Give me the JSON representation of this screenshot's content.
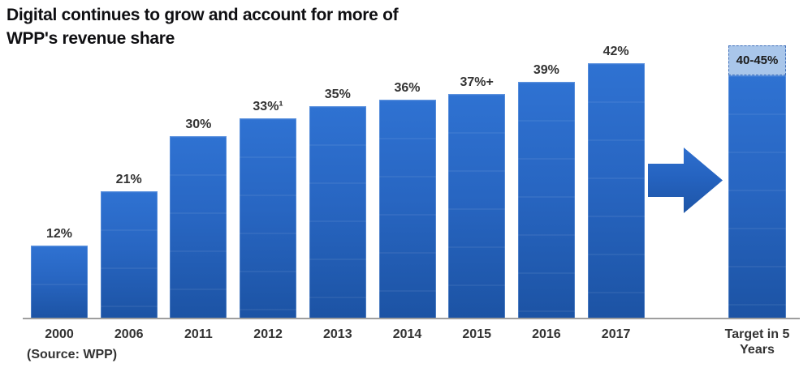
{
  "title": {
    "line1": "Digital continues to grow and account for more of",
    "line2": "WPP's revenue share"
  },
  "source_note": "(Source: WPP)",
  "chart_data": {
    "type": "bar",
    "title": "Digital continues to grow and account for more of WPP's revenue share",
    "categories": [
      "2000",
      "2006",
      "2011",
      "2012",
      "2013",
      "2014",
      "2015",
      "2016",
      "2017",
      "Target in 5 Years"
    ],
    "values": [
      12,
      21,
      30,
      33,
      35,
      36,
      37,
      39,
      42,
      45
    ],
    "value_labels": [
      "12%",
      "21%",
      "30%",
      "33%¹",
      "35%",
      "36%",
      "37%+",
      "39%",
      "42%",
      "40-45%"
    ],
    "target_range": [
      40,
      45
    ],
    "target_label": "40-45%",
    "unit": "%",
    "xlabel": "",
    "ylabel": "",
    "ylim": [
      0,
      47
    ],
    "grid": false,
    "legend": false,
    "source": "(Source: WPP)",
    "annotations": [
      "right-arrow between 2017 bar and target bar"
    ],
    "colors": {
      "bar_gradient_top": "#2f72d2",
      "bar_gradient_bottom": "#1c53a4",
      "target_cap_fill": "#a9c6ea",
      "target_cap_border": "#3f6fba",
      "axis": "#9e9e9e",
      "label_text": "#333333",
      "arrow": "#2563c0"
    }
  }
}
